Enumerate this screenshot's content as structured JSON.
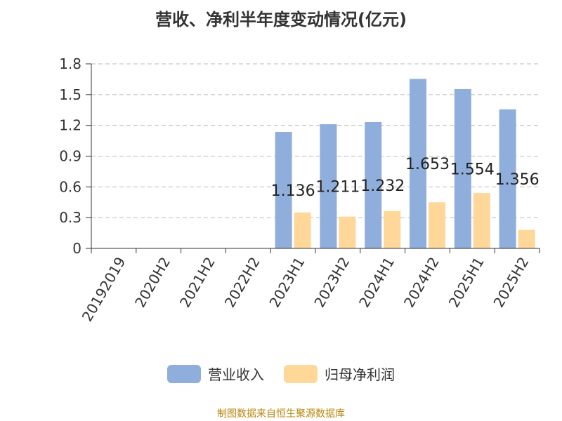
{
  "title": "营收、净利半年度变动情况(亿元)",
  "source_note": "制图数据来自恒生聚源数据库",
  "colors": {
    "revenue": "#8faedb",
    "net_profit": "#ffd799",
    "grid": "#bbbbbb",
    "axis": "#333333",
    "text": "#333333",
    "source": "#b8860b"
  },
  "chart_data": {
    "type": "bar",
    "categories": [
      "20192019",
      "2020H2",
      "2021H2",
      "2022H2",
      "2023H1",
      "2023H2",
      "2024H1",
      "2024H2",
      "2025H1",
      "2025H2"
    ],
    "series": [
      {
        "name": "营业收入",
        "values": [
          null,
          null,
          null,
          null,
          1.136,
          1.211,
          1.232,
          1.653,
          1.554,
          1.356
        ],
        "data_labels": [
          "",
          "",
          "",
          "",
          "1.136",
          "1.211",
          "1.232",
          "1.653",
          "1.554",
          "1.356"
        ]
      },
      {
        "name": "归母净利润",
        "values": [
          null,
          null,
          null,
          null,
          0.35,
          0.31,
          0.365,
          0.45,
          0.54,
          0.18
        ]
      }
    ],
    "ylim": [
      0,
      1.8
    ],
    "yticks": [
      "0",
      "0.3",
      "0.6",
      "0.9",
      "1.2",
      "1.5",
      "1.8"
    ],
    "grid": true,
    "legend_position": "bottom"
  }
}
